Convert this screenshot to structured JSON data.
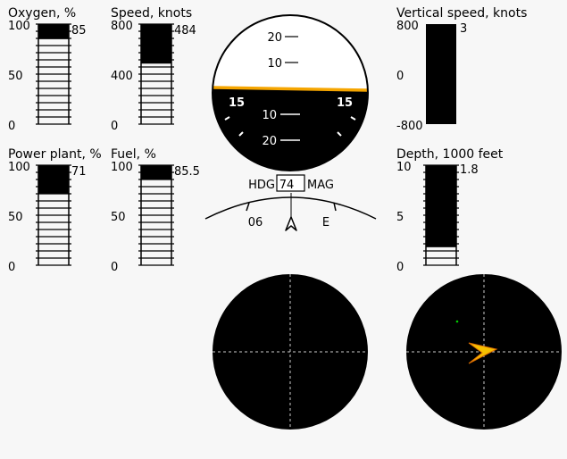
{
  "gauges": {
    "oxygen": {
      "title": "Oxygen, %",
      "ticks": [
        "100",
        "50",
        "0"
      ],
      "min": 0,
      "max": 100,
      "value": 85,
      "value_label": "85"
    },
    "speed": {
      "title": "Speed, knots",
      "ticks": [
        "800",
        "400",
        "0"
      ],
      "min": 0,
      "max": 800,
      "value": 484,
      "value_label": "484"
    },
    "vertical_speed": {
      "title": "Vertical speed, knots",
      "ticks": [
        "800",
        "0",
        "-800"
      ],
      "min": -800,
      "max": 800,
      "value": 3,
      "value_label": "3"
    },
    "power_plant": {
      "title": "Power plant, %",
      "ticks": [
        "100",
        "50",
        "0"
      ],
      "min": 0,
      "max": 100,
      "value": 71,
      "value_label": "71"
    },
    "fuel": {
      "title": "Fuel, %",
      "ticks": [
        "100",
        "50",
        "0"
      ],
      "min": 0,
      "max": 100,
      "value": 85.5,
      "value_label": "85.5"
    },
    "depth": {
      "title": "Depth, 1000 feet",
      "ticks": [
        "10",
        "5",
        "0"
      ],
      "min": 0,
      "max": 10,
      "value": 1.8,
      "value_label": "1.8"
    }
  },
  "attitude": {
    "pitch_labels": [
      "20",
      "10",
      "10",
      "20"
    ],
    "roll_labels": [
      "15",
      "15"
    ],
    "sky_color": "#ffffff",
    "ground_color": "#000000",
    "horizon_color": "#f5a500"
  },
  "heading": {
    "prefix": "HDG",
    "value": "74",
    "suffix": "MAG",
    "marks": [
      "06",
      "E"
    ]
  },
  "radars": {
    "left": {
      "background": "#000000"
    },
    "right": {
      "background": "#000000",
      "target_color": "#f5c000",
      "blip_color": "#00cc00"
    }
  }
}
